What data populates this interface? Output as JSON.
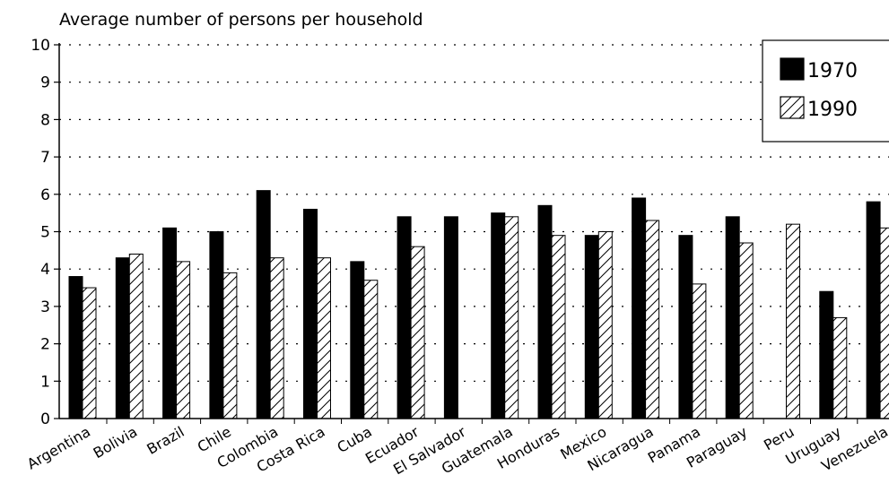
{
  "chart_data": {
    "type": "bar",
    "title": "Average number of persons per household",
    "xlabel": "",
    "ylabel": "",
    "ylim": [
      0,
      10
    ],
    "yticks": [
      "0",
      "1",
      "2",
      "3",
      "4",
      "5",
      "6",
      "7",
      "8",
      "9",
      "10"
    ],
    "grid": true,
    "legend_position": "top-right",
    "categories": [
      "Argentina",
      "Bolivia",
      "Brazil",
      "Chile",
      "Colombia",
      "Costa Rica",
      "Cuba",
      "Ecuador",
      "El Salvador",
      "Guatemala",
      "Honduras",
      "Mexico",
      "Nicaragua",
      "Panama",
      "Paraguay",
      "Peru",
      "Uruguay",
      "Venezuela"
    ],
    "series": [
      {
        "name": "1970",
        "fill": "solid",
        "color": "#000000",
        "values": [
          3.8,
          4.3,
          5.1,
          5.0,
          6.1,
          5.6,
          4.2,
          5.4,
          5.4,
          5.5,
          5.7,
          4.9,
          5.9,
          4.9,
          5.4,
          null,
          3.4,
          5.8
        ]
      },
      {
        "name": "1990",
        "fill": "hatched",
        "color": "#ffffff",
        "values": [
          3.5,
          4.4,
          4.2,
          3.9,
          4.3,
          4.3,
          3.7,
          4.6,
          null,
          5.4,
          4.9,
          5.0,
          5.3,
          3.6,
          4.7,
          5.2,
          2.7,
          5.1
        ]
      }
    ]
  }
}
